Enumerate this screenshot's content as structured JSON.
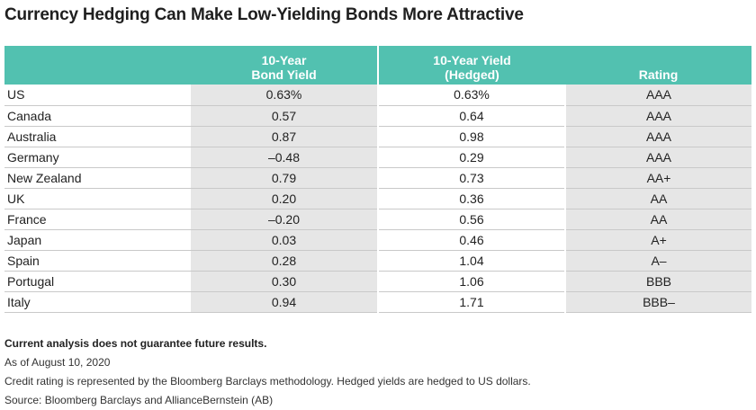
{
  "title": "Currency Hedging Can Make Low-Yielding Bonds More Attractive",
  "colors": {
    "header": "#52c1b0",
    "shade": "#e6e6e6"
  },
  "chart_data": {
    "type": "table",
    "columns": [
      {
        "line1": "",
        "line2": ""
      },
      {
        "line1": "10-Year",
        "line2": "Bond Yield"
      },
      {
        "line1": "10-Year Yield",
        "line2": "(Hedged)"
      },
      {
        "line1": "",
        "line2": "Rating"
      }
    ],
    "rows": [
      {
        "country": "US",
        "yield": "0.63%",
        "hedged": "0.63%",
        "rating": "AAA"
      },
      {
        "country": "Canada",
        "yield": "0.57",
        "hedged": "0.64",
        "rating": "AAA"
      },
      {
        "country": "Australia",
        "yield": "0.87",
        "hedged": "0.98",
        "rating": "AAA"
      },
      {
        "country": "Germany",
        "yield": "–0.48",
        "hedged": "0.29",
        "rating": "AAA"
      },
      {
        "country": "New Zealand",
        "yield": "0.79",
        "hedged": "0.73",
        "rating": "AA+"
      },
      {
        "country": "UK",
        "yield": "0.20",
        "hedged": "0.36",
        "rating": "AA"
      },
      {
        "country": "France",
        "yield": "–0.20",
        "hedged": "0.56",
        "rating": "AA"
      },
      {
        "country": "Japan",
        "yield": "0.03",
        "hedged": "0.46",
        "rating": "A+"
      },
      {
        "country": "Spain",
        "yield": "0.28",
        "hedged": "1.04",
        "rating": "A–"
      },
      {
        "country": "Portugal",
        "yield": "0.30",
        "hedged": "1.06",
        "rating": "BBB"
      },
      {
        "country": "Italy",
        "yield": "0.94",
        "hedged": "1.71",
        "rating": "BBB–"
      }
    ]
  },
  "notes": {
    "disclaimer": "Current analysis does not guarantee future results.",
    "date": "As of August 10, 2020",
    "methodology": "Credit rating is represented by the Bloomberg Barclays methodology. Hedged yields are hedged to US dollars.",
    "source": "Source: Bloomberg Barclays and AllianceBernstein (AB)"
  }
}
